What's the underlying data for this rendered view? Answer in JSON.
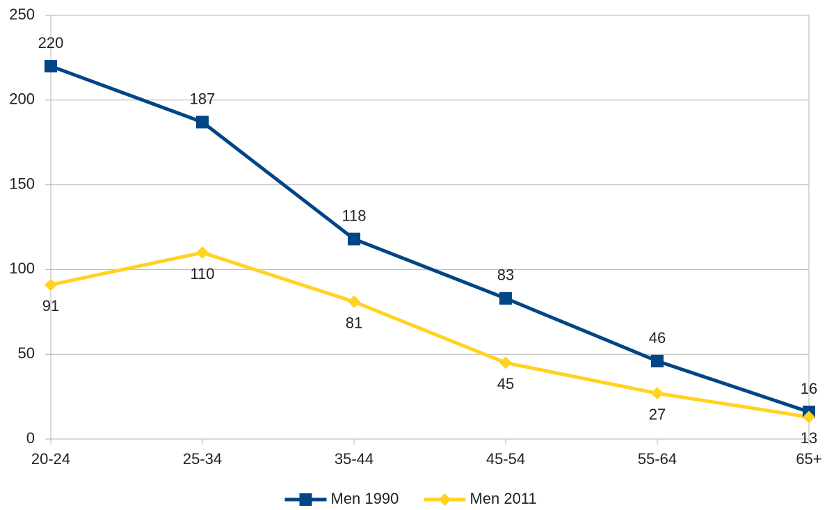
{
  "chart_data": {
    "type": "line",
    "categories": [
      "20-24",
      "25-34",
      "35-44",
      "45-54",
      "55-64",
      "65+"
    ],
    "series": [
      {
        "name": "Men 1990",
        "color": "#004586",
        "marker": "square",
        "label_position": "above",
        "values": [
          220,
          187,
          118,
          83,
          46,
          16
        ]
      },
      {
        "name": "Men 2011",
        "color": "#ffd320",
        "marker": "diamond",
        "label_position": "below",
        "values": [
          91,
          110,
          81,
          45,
          27,
          13
        ]
      }
    ],
    "ylim": [
      0,
      250
    ],
    "yticks": [
      0,
      50,
      100,
      150,
      200,
      250
    ],
    "grid": true,
    "legend": "bottom"
  }
}
